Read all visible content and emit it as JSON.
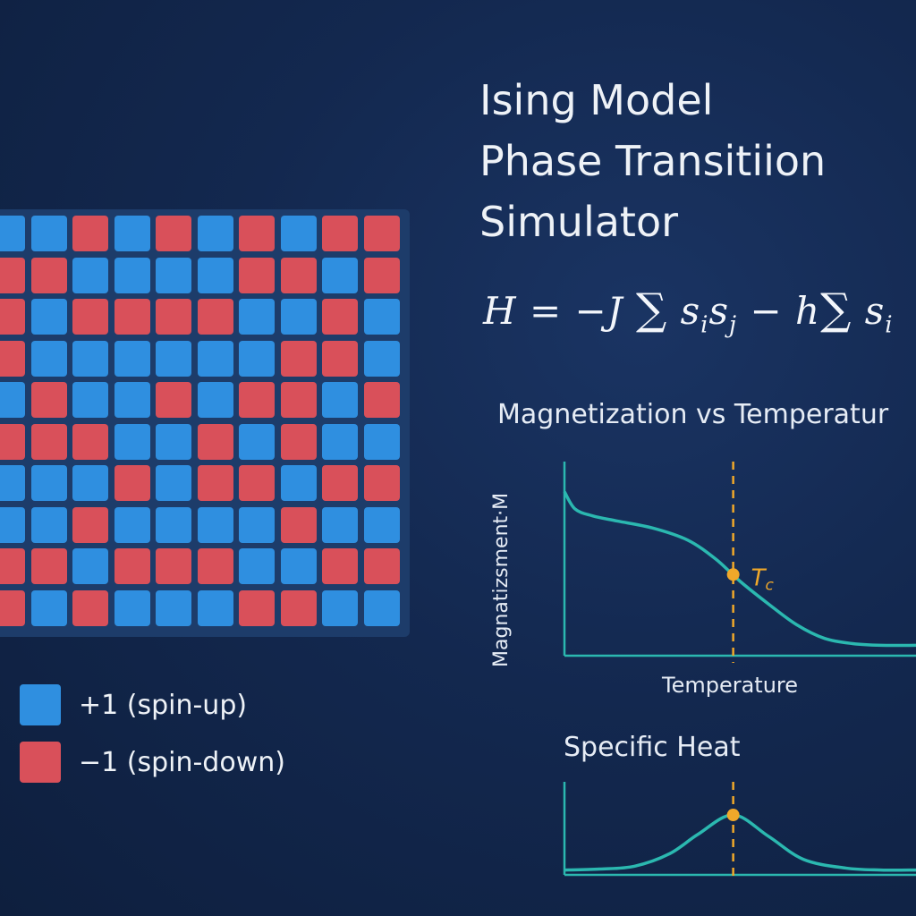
{
  "title_lines": [
    "Ising Model",
    "Phase Transitiion",
    "Simulator"
  ],
  "formula": {
    "H": "H",
    "eq": " = ",
    "neg": "−",
    "J": "J",
    "sigma": "∑",
    "s": "s",
    "i": "i",
    "j": "j",
    "minus": " − ",
    "h": "h"
  },
  "colors": {
    "spin_up": "#2f8fe0",
    "spin_down": "#d9505a",
    "curve": "#2bb8b0",
    "tc": "#f0a82a",
    "axis": "#2bb8b0"
  },
  "lattice": {
    "rows": [
      [
        1,
        1,
        0,
        1,
        0,
        1,
        0,
        1,
        0,
        0
      ],
      [
        0,
        0,
        1,
        1,
        1,
        1,
        0,
        0,
        1,
        0
      ],
      [
        0,
        1,
        0,
        0,
        0,
        0,
        1,
        1,
        0,
        1
      ],
      [
        0,
        1,
        1,
        1,
        1,
        1,
        1,
        0,
        0,
        1
      ],
      [
        1,
        0,
        1,
        1,
        0,
        1,
        0,
        0,
        1,
        0
      ],
      [
        0,
        0,
        0,
        1,
        1,
        0,
        1,
        0,
        1,
        1
      ],
      [
        1,
        1,
        1,
        0,
        1,
        0,
        0,
        1,
        0,
        0
      ],
      [
        1,
        1,
        0,
        1,
        1,
        1,
        1,
        0,
        1,
        1
      ],
      [
        0,
        0,
        1,
        0,
        0,
        0,
        1,
        1,
        0,
        0
      ],
      [
        0,
        1,
        0,
        1,
        1,
        1,
        0,
        0,
        1,
        1
      ]
    ]
  },
  "legend": [
    {
      "label": "+1 (spin-up)",
      "spin": 1
    },
    {
      "label": "−1 (spin-down)",
      "spin": 0
    }
  ],
  "chart_data": [
    {
      "type": "line",
      "title": "Magnetization vs Temperatur",
      "xlabel": "Temperature",
      "ylabel": "Magnatizsment·M",
      "xlim": [
        0,
        10
      ],
      "ylim": [
        0,
        1
      ],
      "x": [
        0,
        0.3,
        0.8,
        1.5,
        2.5,
        3.5,
        4.3,
        5.0,
        5.8,
        6.6,
        7.4,
        8.2,
        9.0,
        10
      ],
      "values": [
        0.95,
        0.85,
        0.81,
        0.78,
        0.74,
        0.67,
        0.56,
        0.43,
        0.3,
        0.18,
        0.1,
        0.07,
        0.06,
        0.06
      ],
      "annotation": {
        "label": "T",
        "label_sub": "c",
        "x": 4.8,
        "y": 0.47
      }
    },
    {
      "type": "line",
      "title": "Specific Heat",
      "xlim": [
        0,
        10
      ],
      "ylim": [
        0,
        1
      ],
      "x": [
        0,
        1.0,
        2.0,
        3.0,
        3.8,
        4.8,
        5.8,
        6.8,
        8.0,
        9.0,
        10
      ],
      "values": [
        0.05,
        0.06,
        0.09,
        0.22,
        0.42,
        0.62,
        0.4,
        0.16,
        0.07,
        0.05,
        0.05
      ],
      "annotation": {
        "x": 4.8,
        "y": 0.62
      }
    }
  ]
}
